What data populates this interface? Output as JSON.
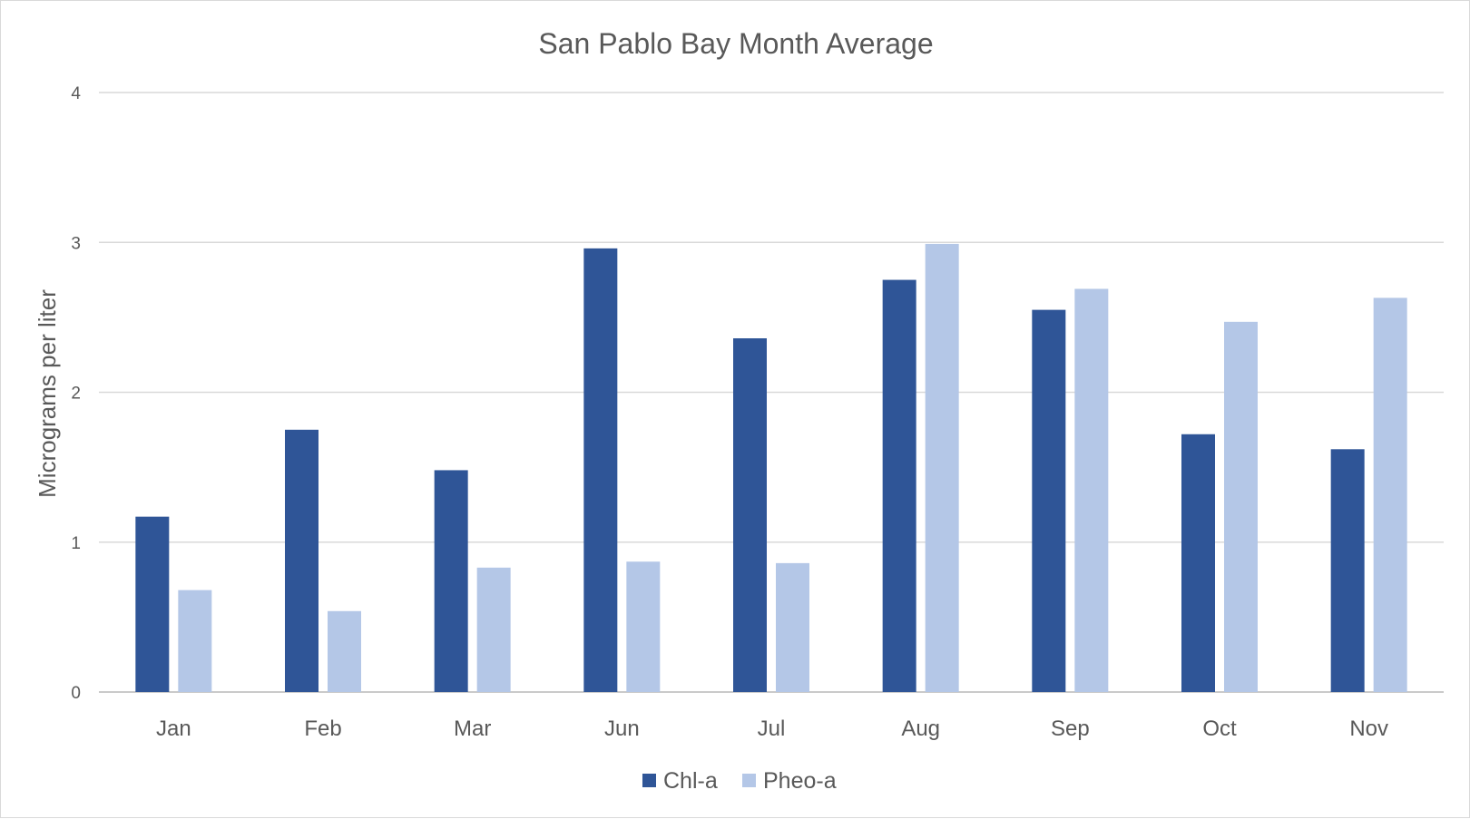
{
  "chart_data": {
    "type": "bar",
    "title": "San Pablo Bay Month Average",
    "xlabel": "",
    "ylabel": "Micrograms per liter",
    "categories": [
      "Jan",
      "Feb",
      "Mar",
      "Jun",
      "Jul",
      "Aug",
      "Sep",
      "Oct",
      "Nov"
    ],
    "series": [
      {
        "name": "Chl-a",
        "color": "#2F5597",
        "values": [
          1.17,
          1.75,
          1.48,
          2.96,
          2.36,
          2.75,
          2.55,
          1.72,
          1.62
        ]
      },
      {
        "name": "Pheo-a",
        "color": "#B4C7E7",
        "values": [
          0.68,
          0.54,
          0.83,
          0.87,
          0.86,
          2.99,
          2.69,
          2.47,
          2.63
        ]
      }
    ],
    "ylim": [
      0,
      4
    ],
    "yticks": [
      "0",
      "1",
      "2",
      "3",
      "4"
    ],
    "grid": true,
    "legend_position": "bottom"
  }
}
